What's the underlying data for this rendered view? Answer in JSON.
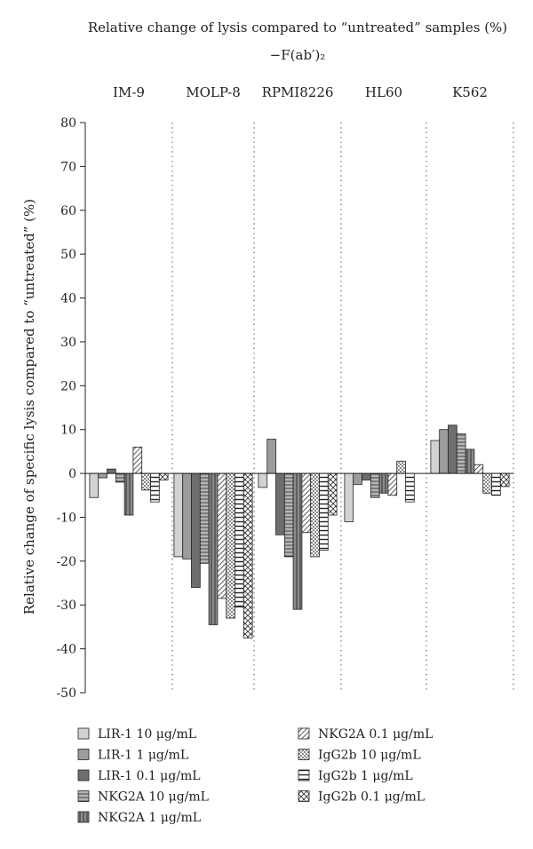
{
  "chart_data": {
    "type": "bar",
    "title": "Relative change of lysis compared to “untreated” samples (%)",
    "subtitle": "−F(ab′)₂",
    "ylabel": "Relative change of specific lysis compared to “untreated” (%)",
    "xlabel": "",
    "ylim": [
      -50,
      80
    ],
    "yticks": [
      -50,
      -40,
      -30,
      -20,
      -10,
      0,
      10,
      20,
      30,
      40,
      50,
      60,
      70,
      80
    ],
    "categories": [
      "IM-9",
      "MOLP-8",
      "RPMI8226",
      "HL60",
      "K562"
    ],
    "legend_position": "bottom",
    "grid": false,
    "series": [
      {
        "name": "LIR-1 10 μg/mL",
        "fill": "#d2d2d2",
        "pattern": "none",
        "values": [
          -5.5,
          -19,
          -3.2,
          -11,
          7.5
        ]
      },
      {
        "name": "LIR-1 1 μg/mL",
        "fill": "#9c9c9c",
        "pattern": "none",
        "values": [
          -1,
          -19.5,
          7.8,
          -2.5,
          10
        ]
      },
      {
        "name": "LIR-1 0.1 μg/mL",
        "fill": "#6e6e6e",
        "pattern": "none",
        "values": [
          1,
          -26,
          -14,
          -1.5,
          11
        ]
      },
      {
        "name": "NKG2A 10 μg/mL",
        "fill": "#b5b5b5",
        "pattern": "hlines",
        "values": [
          -2,
          -20.5,
          -19,
          -5.5,
          9
        ]
      },
      {
        "name": "NKG2A 1 μg/mL",
        "fill": "#8a8a8a",
        "pattern": "vlines",
        "values": [
          -9.5,
          -34.5,
          -31,
          -4.5,
          5.5
        ]
      },
      {
        "name": "NKG2A 0.1 μg/mL",
        "fill": "#ffffff",
        "pattern": "diag",
        "values": [
          6,
          -28.5,
          -13.5,
          -5,
          2
        ]
      },
      {
        "name": "IgG2b 10 μg/mL",
        "fill": "#ffffff",
        "pattern": "dots",
        "values": [
          -3.8,
          -33,
          -19,
          2.8,
          -4.5
        ]
      },
      {
        "name": "IgG2b 1 μg/mL",
        "fill": "#ffffff",
        "pattern": "hstripe",
        "values": [
          -6.5,
          -30.5,
          -17.5,
          -6.5,
          -5
        ]
      },
      {
        "name": "IgG2b 0.1 μg/mL",
        "fill": "#ffffff",
        "pattern": "cross",
        "values": [
          -1.5,
          -37.5,
          -9.5,
          0,
          -3
        ]
      }
    ]
  }
}
